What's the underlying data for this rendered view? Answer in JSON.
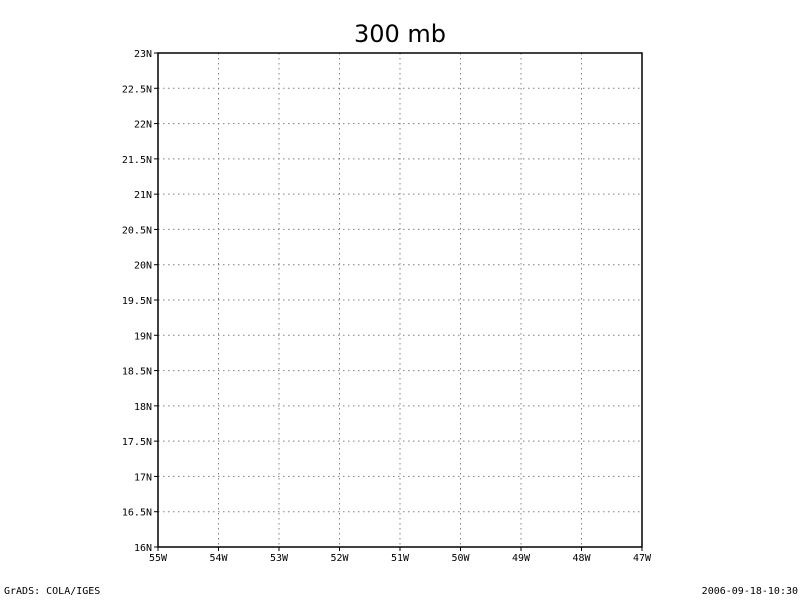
{
  "title": "300 mb",
  "footer": {
    "left": "GrADS: COLA/IGES",
    "right": "2006-09-18-10:30"
  },
  "map": {
    "lon_range": [
      -55,
      -47
    ],
    "lat_range": [
      16,
      23
    ],
    "lon_tick_step": 1,
    "lat_tick_step": 0.5,
    "lon_labels": [
      "55W",
      "54W",
      "53W",
      "52W",
      "51W",
      "50W",
      "49W",
      "48W",
      "47W"
    ],
    "lat_labels": [
      "16N",
      "16.5N",
      "17N",
      "17.5N",
      "18N",
      "18.5N",
      "19N",
      "19.5N",
      "20N",
      "20.5N",
      "21N",
      "21.5N",
      "22N",
      "22.5N",
      "23N"
    ],
    "grid": "dotted",
    "colors": {
      "frame": "#000000",
      "grid": "#808080",
      "background": "#ffffff"
    }
  }
}
